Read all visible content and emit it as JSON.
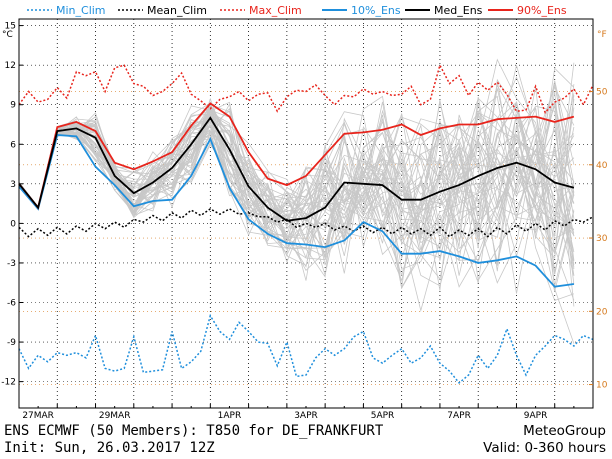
{
  "chart_data": {
    "type": "line",
    "title": "",
    "xlabel": "",
    "ylabel": "",
    "y_unit_left": "°C",
    "y_unit_right": "°F",
    "ylim": [
      -14,
      15.5
    ],
    "xlim": [
      0,
      360
    ],
    "yticks": [
      15,
      12,
      9,
      6,
      3,
      0,
      -3,
      -6,
      -9,
      -12
    ],
    "yticks_right_F": [
      50,
      40,
      30,
      20,
      10
    ],
    "x_tick_labels": [
      {
        "label": "27MAR",
        "hour": 12
      },
      {
        "label": "29MAR",
        "hour": 60
      },
      {
        "label": "1APR",
        "hour": 132
      },
      {
        "label": "3APR",
        "hour": 180
      },
      {
        "label": "5APR",
        "hour": 228
      },
      {
        "label": "7APR",
        "hour": 276
      },
      {
        "label": "9APR",
        "hour": 324
      }
    ],
    "grid": true,
    "legend_position": "top",
    "series": [
      {
        "name": "Min_Clim",
        "color": "#1f8fdc",
        "style": "dotted",
        "x": [
          0,
          6,
          12,
          18,
          24,
          30,
          36,
          42,
          48,
          54,
          60,
          66,
          72,
          78,
          84,
          90,
          96,
          102,
          108,
          114,
          120,
          126,
          132,
          138,
          144,
          150,
          156,
          162,
          168,
          174,
          180,
          186,
          192,
          198,
          204,
          210,
          216,
          222,
          228,
          234,
          240,
          246,
          252,
          258,
          264,
          270,
          276,
          282,
          288,
          294,
          300,
          306,
          312,
          318,
          324,
          330,
          336,
          342,
          348,
          354,
          360
        ],
        "values": [
          -9.5,
          -11,
          -10,
          -10.5,
          -9.8,
          -10,
          -9.8,
          -10.2,
          -8.5,
          -11,
          -11.2,
          -11,
          -8.6,
          -11.3,
          -11.2,
          -11.1,
          -8.2,
          -11,
          -10.5,
          -9.7,
          -7,
          -8.2,
          -8.8,
          -7.5,
          -8.2,
          -9,
          -9.1,
          -10.8,
          -9,
          -11.6,
          -11.5,
          -10.2,
          -9.5,
          -10,
          -9.5,
          -8.6,
          -8.2,
          -10.2,
          -10.6,
          -10,
          -9.5,
          -10.6,
          -10.2,
          -9.3,
          -10.6,
          -11.2,
          -12.1,
          -11.5,
          -10,
          -11,
          -10,
          -8,
          -10,
          -11.5,
          -10,
          -9.3,
          -8.5,
          -8.8,
          -9.3,
          -8.5,
          -8.8
        ]
      },
      {
        "name": "Mean_Clim",
        "color": "#000000",
        "style": "dotted",
        "x": [
          0,
          6,
          12,
          18,
          24,
          30,
          36,
          42,
          48,
          54,
          60,
          66,
          72,
          78,
          84,
          90,
          96,
          102,
          108,
          114,
          120,
          126,
          132,
          138,
          144,
          150,
          156,
          162,
          168,
          174,
          180,
          186,
          192,
          198,
          204,
          210,
          216,
          222,
          228,
          234,
          240,
          246,
          252,
          258,
          264,
          270,
          276,
          282,
          288,
          294,
          300,
          306,
          312,
          318,
          324,
          330,
          336,
          342,
          348,
          354,
          360
        ],
        "values": [
          -0.3,
          -1,
          -0.4,
          -0.9,
          -0.3,
          -0.8,
          -0.2,
          -0.6,
          0,
          -0.4,
          0.1,
          -0.3,
          0.3,
          0.1,
          0.6,
          0.2,
          0.8,
          0.4,
          1,
          0.6,
          1.1,
          0.7,
          1.1,
          0.7,
          0.8,
          0.5,
          0.5,
          0.1,
          0.3,
          -0.3,
          0,
          -0.3,
          0,
          -0.5,
          -0.2,
          -0.6,
          -0.2,
          -0.7,
          -0.3,
          -0.8,
          -0.3,
          -0.8,
          -0.4,
          -0.9,
          -0.3,
          -1,
          -0.5,
          -0.9,
          -0.4,
          -1,
          -0.3,
          -0.8,
          -0.1,
          -0.6,
          0,
          -0.5,
          0.2,
          -0.2,
          0.3,
          0.1,
          0.5
        ]
      },
      {
        "name": "Max_Clim",
        "color": "#e8241c",
        "style": "dotted",
        "x": [
          0,
          6,
          12,
          18,
          24,
          30,
          36,
          42,
          48,
          54,
          60,
          66,
          72,
          78,
          84,
          90,
          96,
          102,
          108,
          114,
          120,
          126,
          132,
          138,
          144,
          150,
          156,
          162,
          168,
          174,
          180,
          186,
          192,
          198,
          204,
          210,
          216,
          222,
          228,
          234,
          240,
          246,
          252,
          258,
          264,
          270,
          276,
          282,
          288,
          294,
          300,
          306,
          312,
          318,
          324,
          330,
          336,
          342,
          348,
          354,
          360
        ],
        "values": [
          9,
          10,
          9.2,
          9.4,
          10.3,
          9.5,
          11.5,
          11.2,
          11.5,
          10,
          11.8,
          12,
          10.6,
          10.4,
          9.7,
          10,
          10.6,
          11.4,
          9.8,
          9.3,
          8.7,
          9.4,
          9.6,
          10,
          9.3,
          9.8,
          9.9,
          8.5,
          9.6,
          10.1,
          10,
          10.5,
          9.7,
          9,
          9.7,
          9.6,
          10.2,
          9.8,
          10,
          9.7,
          9.8,
          10.4,
          9,
          9.4,
          12,
          10.6,
          11.2,
          9.7,
          10.7,
          10.1,
          10.7,
          9.8,
          8.5,
          8.6,
          10.4,
          8.4,
          9.2,
          9.5,
          10.2,
          9,
          10.5
        ]
      },
      {
        "name": "10%_Ens",
        "color": "#1f8fdc",
        "style": "solid",
        "x": [
          0,
          12,
          24,
          36,
          48,
          60,
          72,
          84,
          96,
          108,
          120,
          132,
          144,
          156,
          168,
          180,
          192,
          204,
          216,
          228,
          240,
          252,
          264,
          276,
          288,
          300,
          312,
          324,
          336,
          348
        ],
        "values": [
          2.8,
          1.1,
          6.7,
          6.6,
          4.3,
          2.9,
          1.3,
          1.7,
          1.8,
          3.6,
          6.4,
          2.7,
          0.3,
          -0.8,
          -1.5,
          -1.6,
          -1.8,
          -1.3,
          0.1,
          -0.6,
          -2.3,
          -2.3,
          -2.1,
          -2.5,
          -3,
          -2.8,
          -2.5,
          -3.2,
          -4.8,
          -4.6
        ]
      },
      {
        "name": "Med_Ens",
        "color": "#000000",
        "style": "solid",
        "x": [
          0,
          12,
          24,
          36,
          48,
          60,
          72,
          84,
          96,
          108,
          120,
          132,
          144,
          156,
          168,
          180,
          192,
          204,
          216,
          228,
          240,
          252,
          264,
          276,
          288,
          300,
          312,
          324,
          336,
          348
        ],
        "values": [
          3,
          1.2,
          7,
          7.2,
          6.5,
          3.6,
          2.3,
          3.1,
          4.2,
          6,
          8,
          5.6,
          2.8,
          1.2,
          0.2,
          0.4,
          1.2,
          3.1,
          3,
          2.9,
          1.8,
          1.8,
          2.4,
          2.9,
          3.6,
          4.2,
          4.6,
          4.1,
          3.1,
          2.7
        ]
      },
      {
        "name": "90%_Ens",
        "color": "#e8241c",
        "style": "solid",
        "x": [
          0,
          12,
          24,
          36,
          48,
          60,
          72,
          84,
          96,
          108,
          120,
          132,
          144,
          156,
          168,
          180,
          192,
          204,
          216,
          228,
          240,
          252,
          264,
          276,
          288,
          300,
          312,
          324,
          336,
          348
        ],
        "values": [
          3,
          1.2,
          7.3,
          7.7,
          7,
          4.6,
          4.1,
          4.7,
          5.4,
          7.4,
          9.1,
          8.1,
          5.4,
          3.4,
          2.9,
          3.6,
          5.2,
          6.8,
          6.9,
          7.1,
          7.5,
          6.7,
          7.2,
          7.5,
          7.5,
          7.9,
          8,
          8.1,
          7.7,
          8.1
        ]
      }
    ],
    "members": {
      "count": 50,
      "color": "#c8c8c8",
      "description_shown": "ENS ECMWF (50 Members)"
    }
  },
  "legend": {
    "min_clim": "Min_Clim",
    "mean_clim": "Mean_Clim",
    "max_clim": "Max_Clim",
    "p10": "10%_Ens",
    "med": "Med_Ens",
    "p90": "90%_Ens"
  },
  "footer": {
    "line1_left": "ENS ECMWF (50 Members): T850 for DE_FRANKFURT",
    "line1_right": "MeteoGroup",
    "line2_left": "Init: Sun, 26.03.2017 12Z",
    "line2_right": "Valid: 0-360 hours"
  },
  "colors": {
    "min_clim": "#1f8fdc",
    "max_clim": "#e8241c",
    "mean_clim": "#000000",
    "fahrenheit_axis": "#d67a1e",
    "member": "#c8c8c8"
  }
}
